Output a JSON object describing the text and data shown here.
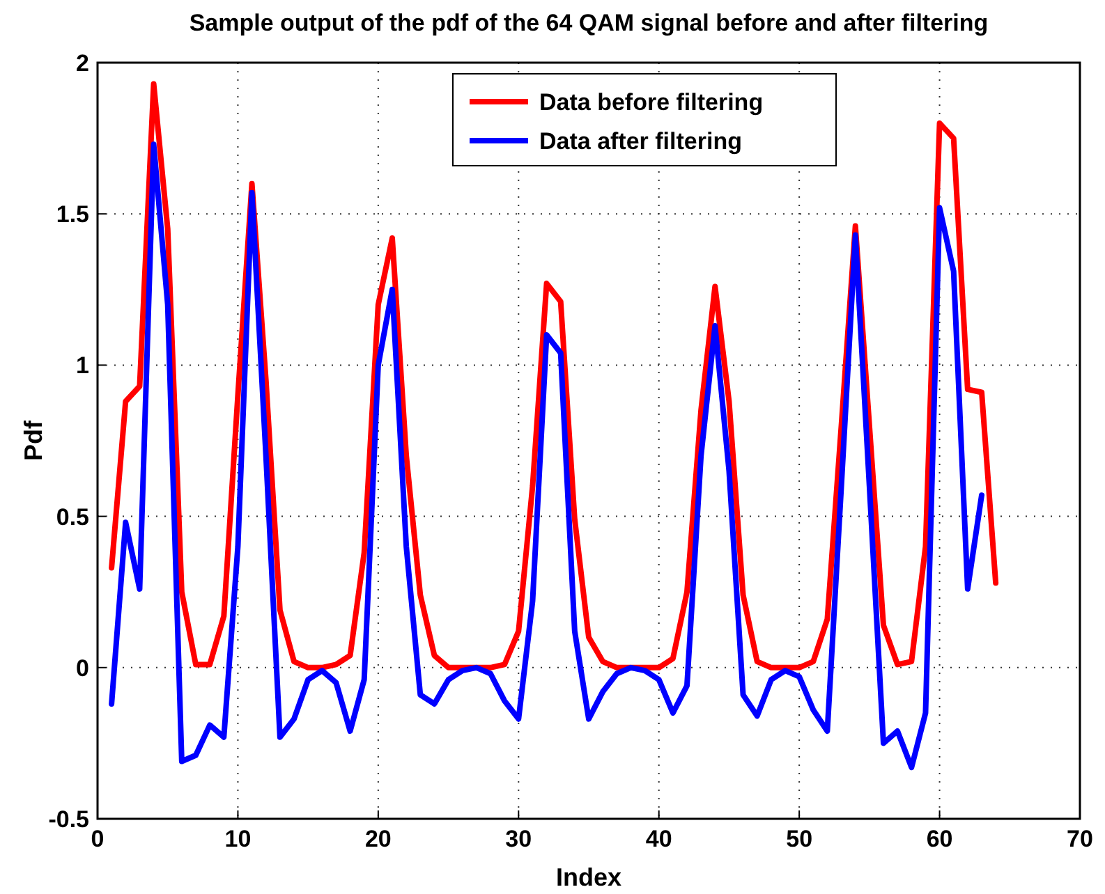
{
  "chart_data": {
    "type": "line",
    "title": "Sample output of the pdf of the 64 QAM signal before and after filtering",
    "xlabel": "Index",
    "ylabel": "Pdf",
    "xlim": [
      0,
      70
    ],
    "xticks": [
      0,
      10,
      20,
      30,
      40,
      50,
      60,
      70
    ],
    "ylim": [
      -0.5,
      2
    ],
    "yticks": [
      -0.5,
      0,
      0.5,
      1,
      1.5,
      2
    ],
    "grid": true,
    "legend": "top",
    "line_style": "solid",
    "marker": "none",
    "series": [
      {
        "name": "Data before filtering",
        "color": "#ff0000",
        "x": [
          1,
          2,
          3,
          4,
          5,
          6,
          7,
          8,
          9,
          10,
          11,
          12,
          13,
          14,
          15,
          16,
          17,
          18,
          19,
          20,
          21,
          22,
          23,
          24,
          25,
          26,
          27,
          28,
          29,
          30,
          31,
          32,
          33,
          34,
          35,
          36,
          37,
          38,
          39,
          40,
          41,
          42,
          43,
          44,
          45,
          46,
          47,
          48,
          49,
          50,
          51,
          52,
          53,
          54,
          55,
          56,
          57,
          58,
          59,
          60,
          61,
          62,
          63,
          64
        ],
        "values": [
          0.33,
          0.88,
          0.93,
          1.93,
          1.45,
          0.25,
          0.01,
          0.01,
          0.17,
          0.9,
          1.6,
          0.95,
          0.19,
          0.02,
          0,
          0,
          0.01,
          0.04,
          0.38,
          1.2,
          1.42,
          0.7,
          0.24,
          0.04,
          0,
          0,
          0,
          0,
          0.01,
          0.12,
          0.6,
          1.27,
          1.21,
          0.49,
          0.1,
          0.02,
          0,
          0,
          0,
          0,
          0.03,
          0.25,
          0.85,
          1.26,
          0.88,
          0.24,
          0.02,
          0,
          0,
          0,
          0.02,
          0.16,
          0.8,
          1.46,
          0.8,
          0.14,
          0.01,
          0.02,
          0.4,
          1.8,
          1.75,
          0.92,
          0.91,
          0.28
        ]
      },
      {
        "name": "Data after filtering",
        "color": "#0000ff",
        "x": [
          1,
          2,
          3,
          4,
          5,
          6,
          7,
          8,
          9,
          10,
          11,
          12,
          13,
          14,
          15,
          16,
          17,
          18,
          19,
          20,
          21,
          22,
          23,
          24,
          25,
          26,
          27,
          28,
          29,
          30,
          31,
          32,
          33,
          34,
          35,
          36,
          37,
          38,
          39,
          40,
          41,
          42,
          43,
          44,
          45,
          46,
          47,
          48,
          49,
          50,
          51,
          52,
          53,
          54,
          55,
          56,
          57,
          58,
          59,
          60,
          61,
          62,
          63
        ],
        "values": [
          -0.12,
          0.48,
          0.26,
          1.73,
          1.2,
          -0.31,
          -0.29,
          -0.19,
          -0.23,
          0.4,
          1.57,
          0.7,
          -0.23,
          -0.17,
          -0.04,
          -0.01,
          -0.05,
          -0.21,
          -0.04,
          1,
          1.25,
          0.4,
          -0.09,
          -0.12,
          -0.04,
          -0.01,
          0,
          -0.02,
          -0.11,
          -0.17,
          0.22,
          1.1,
          1.04,
          0.12,
          -0.17,
          -0.08,
          -0.02,
          0,
          -0.01,
          -0.04,
          -0.15,
          -0.06,
          0.7,
          1.13,
          0.65,
          -0.09,
          -0.16,
          -0.04,
          -0.01,
          -0.03,
          -0.14,
          -0.21,
          0.6,
          1.43,
          0.6,
          -0.25,
          -0.21,
          -0.33,
          -0.15,
          1.52,
          1.31,
          0.26,
          0.57
        ]
      }
    ]
  }
}
